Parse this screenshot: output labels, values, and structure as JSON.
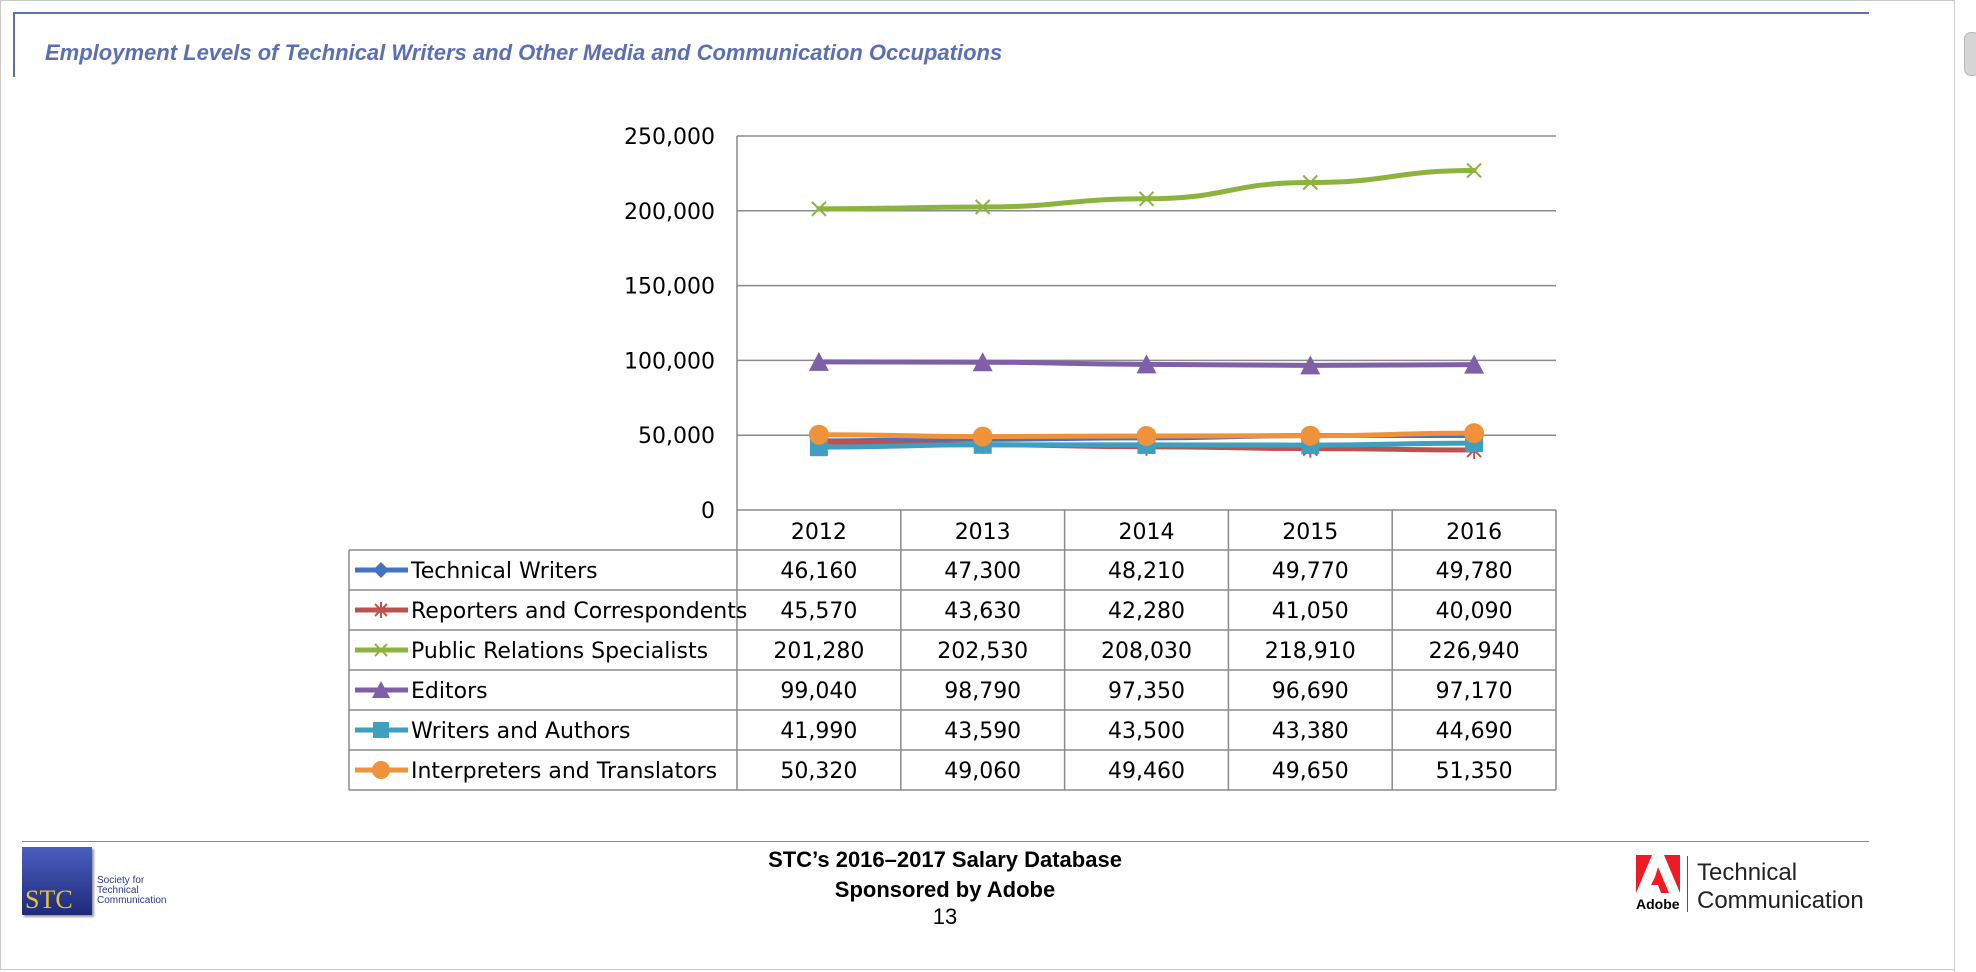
{
  "page": {
    "title": "Employment Levels of Technical Writers and Other Media and Communication Occupations"
  },
  "chart_data": {
    "type": "line",
    "title": "",
    "xlabel": "",
    "ylabel": "",
    "x": [
      "2012",
      "2013",
      "2014",
      "2015",
      "2016"
    ],
    "ylim": [
      0,
      250000
    ],
    "yticks": [
      0,
      50000,
      100000,
      150000,
      200000,
      250000
    ],
    "ytick_labels": [
      "0",
      "50,000",
      "100,000",
      "150,000",
      "200,000",
      "250,000"
    ],
    "grid": true,
    "legend": "data-table-below",
    "series": [
      {
        "name": "Technical Writers",
        "color": "#4472c4",
        "marker": "diamond",
        "values": [
          46160,
          47300,
          48210,
          49770,
          49780
        ],
        "labels": [
          "46,160",
          "47,300",
          "48,210",
          "49,770",
          "49,780"
        ]
      },
      {
        "name": "Reporters and Correspondents",
        "color": "#c0504d",
        "marker": "star",
        "values": [
          45570,
          43630,
          42280,
          41050,
          40090
        ],
        "labels": [
          "45,570",
          "43,630",
          "42,280",
          "41,050",
          "40,090"
        ]
      },
      {
        "name": "Public Relations Specialists",
        "color": "#8db33f",
        "marker": "x",
        "values": [
          201280,
          202530,
          208030,
          218910,
          226940
        ],
        "labels": [
          "201,280",
          "202,530",
          "208,030",
          "218,910",
          "226,940"
        ]
      },
      {
        "name": "Editors",
        "color": "#7f5fa7",
        "marker": "triangle",
        "values": [
          99040,
          98790,
          97350,
          96690,
          97170
        ],
        "labels": [
          "99,040",
          "98,790",
          "97,350",
          "96,690",
          "97,170"
        ]
      },
      {
        "name": "Writers and Authors",
        "color": "#3f9fbf",
        "marker": "square",
        "values": [
          41990,
          43590,
          43500,
          43380,
          44690
        ],
        "labels": [
          "41,990",
          "43,590",
          "43,500",
          "43,380",
          "44,690"
        ]
      },
      {
        "name": "Interpreters and Translators",
        "color": "#f0923a",
        "marker": "circle",
        "values": [
          50320,
          49060,
          49460,
          49650,
          51350
        ],
        "labels": [
          "50,320",
          "49,060",
          "49,460",
          "49,650",
          "51,350"
        ]
      }
    ]
  },
  "footer": {
    "line1": "STC’s 2016–2017 Salary Database",
    "line2": "Sponsored by Adobe",
    "page_number": "13",
    "stc_logo_letters": "STC",
    "stc_logo_text": [
      "Society for",
      "Technical",
      "Communication"
    ],
    "adobe_wordmark": "Adobe",
    "tc_line1": "Technical",
    "tc_line2": "Communication"
  }
}
